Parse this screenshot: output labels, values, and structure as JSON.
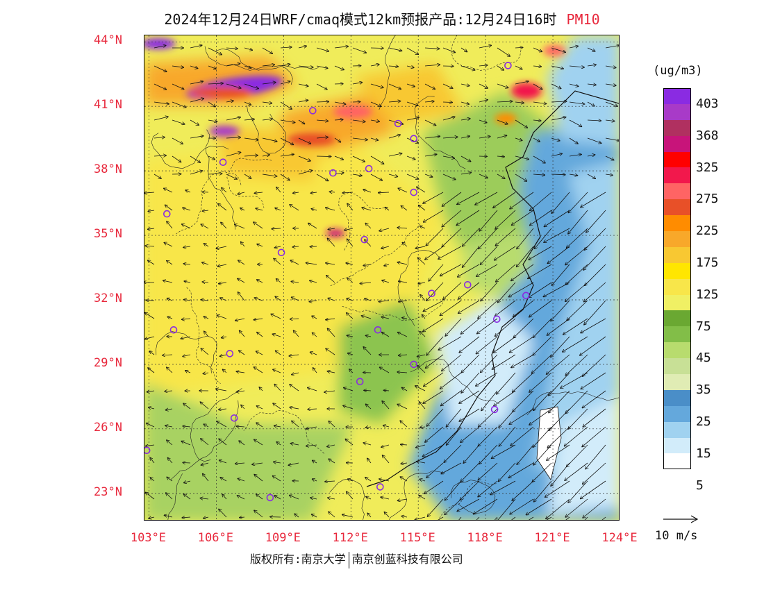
{
  "title": {
    "main": "2024年12月24日WRF/cmaq模式12km预报产品:12月24日16时",
    "pollutant": "PM10"
  },
  "colors": {
    "label_red": "#e8283c",
    "station_marker": "#8a2be2",
    "wind_arrow": "#111111"
  },
  "axes": {
    "lat_labels": [
      "44°N",
      "41°N",
      "38°N",
      "35°N",
      "32°N",
      "29°N",
      "26°N",
      "23°N"
    ],
    "lon_labels": [
      "103°E",
      "106°E",
      "109°E",
      "112°E",
      "115°E",
      "118°E",
      "121°E",
      "124°E"
    ]
  },
  "legend": {
    "unit": "(ug/m3)",
    "tick_labels": [
      "403",
      "368",
      "325",
      "275",
      "225",
      "175",
      "125",
      "75",
      "45",
      "35",
      "25",
      "15",
      "5"
    ],
    "colors_top_to_bottom": [
      "#8a2be2",
      "#a83ac8",
      "#b03060",
      "#c8147a",
      "#ff0000",
      "#f2184c",
      "#ff6464",
      "#e85028",
      "#ff8c00",
      "#f8a82a",
      "#f8c832",
      "#ffe600",
      "#f8e64a",
      "#f0f064",
      "#6aa832",
      "#82be48",
      "#b8dc6e",
      "#c8e096",
      "#e0ecb4",
      "#4a8ec8",
      "#64a8dc",
      "#a0d2f0",
      "#d2ecfa",
      "#ffffff"
    ],
    "reference_vector_label": "10 m/s"
  },
  "footer": {
    "left": "版权所有:南京大学",
    "right": "南京创蓝科技有限公司"
  },
  "map": {
    "lon_range": [
      102.8,
      124.0
    ],
    "lat_range": [
      21.7,
      44.3
    ],
    "stations": [
      {
        "lon": 119.0,
        "lat": 42.9
      },
      {
        "lon": 110.3,
        "lat": 40.8
      },
      {
        "lon": 114.1,
        "lat": 40.2
      },
      {
        "lon": 114.8,
        "lat": 39.5
      },
      {
        "lon": 106.3,
        "lat": 38.4
      },
      {
        "lon": 111.2,
        "lat": 37.9
      },
      {
        "lon": 112.8,
        "lat": 38.1
      },
      {
        "lon": 114.8,
        "lat": 37.0
      },
      {
        "lon": 103.8,
        "lat": 36.0
      },
      {
        "lon": 112.6,
        "lat": 34.8
      },
      {
        "lon": 108.9,
        "lat": 34.2
      },
      {
        "lon": 115.6,
        "lat": 32.3
      },
      {
        "lon": 117.2,
        "lat": 32.7
      },
      {
        "lon": 119.8,
        "lat": 32.2
      },
      {
        "lon": 118.5,
        "lat": 31.1
      },
      {
        "lon": 104.1,
        "lat": 30.6
      },
      {
        "lon": 113.2,
        "lat": 30.6
      },
      {
        "lon": 106.6,
        "lat": 29.5
      },
      {
        "lon": 114.8,
        "lat": 29.0
      },
      {
        "lon": 112.4,
        "lat": 28.2
      },
      {
        "lon": 106.8,
        "lat": 26.5
      },
      {
        "lon": 118.4,
        "lat": 26.9
      },
      {
        "lon": 102.9,
        "lat": 25.0
      },
      {
        "lon": 108.4,
        "lat": 22.8
      },
      {
        "lon": 113.3,
        "lat": 23.3
      }
    ]
  }
}
